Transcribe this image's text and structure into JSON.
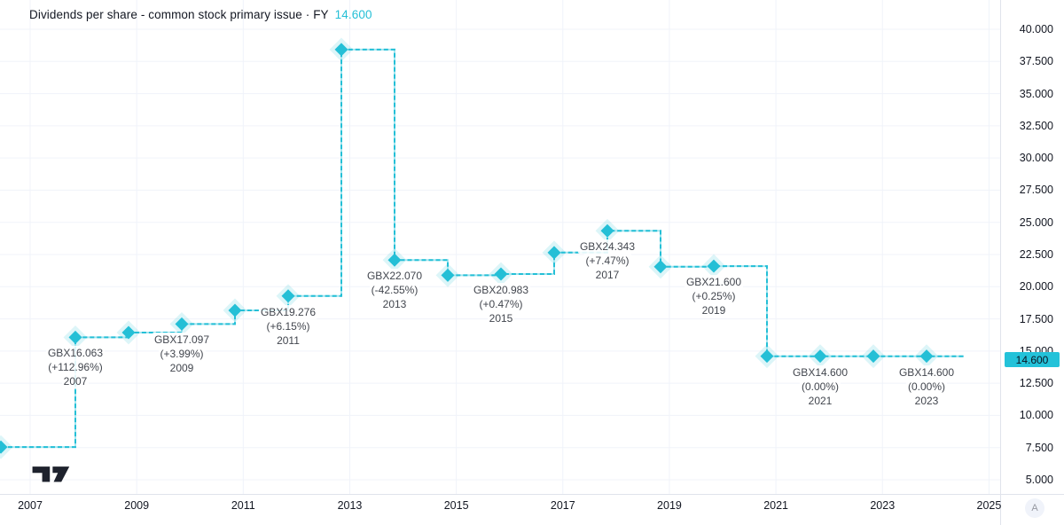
{
  "title": {
    "text": "Dividends per share - common stock primary issue · FY",
    "value": "14.600"
  },
  "corner_button": "A",
  "colors": {
    "accent": "#24bfd6",
    "accent_light": "#a4e6f0",
    "halo": "#24bfd6",
    "badge_bg": "#23c2d9",
    "badge_text": "#0b1320",
    "grid": "#f0f3fa",
    "axis_border": "#e0e3eb",
    "axis_text": "#131722",
    "label_text": "#42464e",
    "title_text": "#131722",
    "logo": "#1e222d",
    "button_bg": "#f0f3fa",
    "button_text": "#9598a1"
  },
  "y_axis": {
    "tick_labels": [
      "40.000",
      "37.500",
      "35.000",
      "32.500",
      "30.000",
      "27.500",
      "25.000",
      "22.500",
      "20.000",
      "17.500",
      "15.000",
      "12.500",
      "10.000",
      "7.500",
      "5.000"
    ],
    "tick_values": [
      40,
      37.5,
      35,
      32.5,
      30,
      27.5,
      25,
      22.5,
      20,
      17.5,
      15,
      12.5,
      10,
      7.5,
      5
    ],
    "price_label": "14.600"
  },
  "x_axis": {
    "tick_labels": [
      "2007",
      "2009",
      "2011",
      "2013",
      "2015",
      "2017",
      "2019",
      "2021",
      "2023",
      "2025"
    ],
    "tick_years": [
      2007,
      2009,
      2011,
      2013,
      2015,
      2017,
      2019,
      2021,
      2023,
      2025
    ]
  },
  "chart_data": {
    "type": "line",
    "line_style": "step",
    "title": "Dividends per share - common stock primary issue",
    "period": "FY",
    "unit": "GBX",
    "ylim": [
      5,
      40
    ],
    "grid": true,
    "legend_position": "none",
    "x": [
      2005.6,
      2007,
      2008,
      2009,
      2010,
      2011,
      2012,
      2013,
      2014,
      2015,
      2016,
      2017,
      2018,
      2019,
      2020,
      2021,
      2022,
      2023
    ],
    "values": [
      7.54,
      16.063,
      16.44,
      17.097,
      18.16,
      19.276,
      38.42,
      22.07,
      20.89,
      20.983,
      22.65,
      24.343,
      21.55,
      21.6,
      14.6,
      14.6,
      14.6,
      14.6
    ],
    "line_extends_to_x": 2023.7,
    "point_labels": [
      {
        "year": 2007,
        "value": 16.063,
        "lines": [
          "GBX16.063",
          "(+112.96%)",
          "2007"
        ]
      },
      {
        "year": 2009,
        "value": 17.097,
        "lines": [
          "GBX17.097",
          "(+3.99%)",
          "2009"
        ]
      },
      {
        "year": 2011,
        "value": 19.276,
        "lines": [
          "GBX19.276",
          "(+6.15%)",
          "2011"
        ]
      },
      {
        "year": 2013,
        "value": 22.07,
        "lines": [
          "GBX22.070",
          "(-42.55%)",
          "2013"
        ]
      },
      {
        "year": 2015,
        "value": 20.983,
        "lines": [
          "GBX20.983",
          "(+0.47%)",
          "2015"
        ]
      },
      {
        "year": 2017,
        "value": 24.343,
        "lines": [
          "GBX24.343",
          "(+7.47%)",
          "2017"
        ]
      },
      {
        "year": 2019,
        "value": 21.6,
        "lines": [
          "GBX21.600",
          "(+0.25%)",
          "2019"
        ]
      },
      {
        "year": 2021,
        "value": 14.6,
        "lines": [
          "GBX14.600",
          "(0.00%)",
          "2021"
        ]
      },
      {
        "year": 2023,
        "value": 14.6,
        "lines": [
          "GBX14.600",
          "(0.00%)",
          "2023"
        ]
      }
    ]
  }
}
